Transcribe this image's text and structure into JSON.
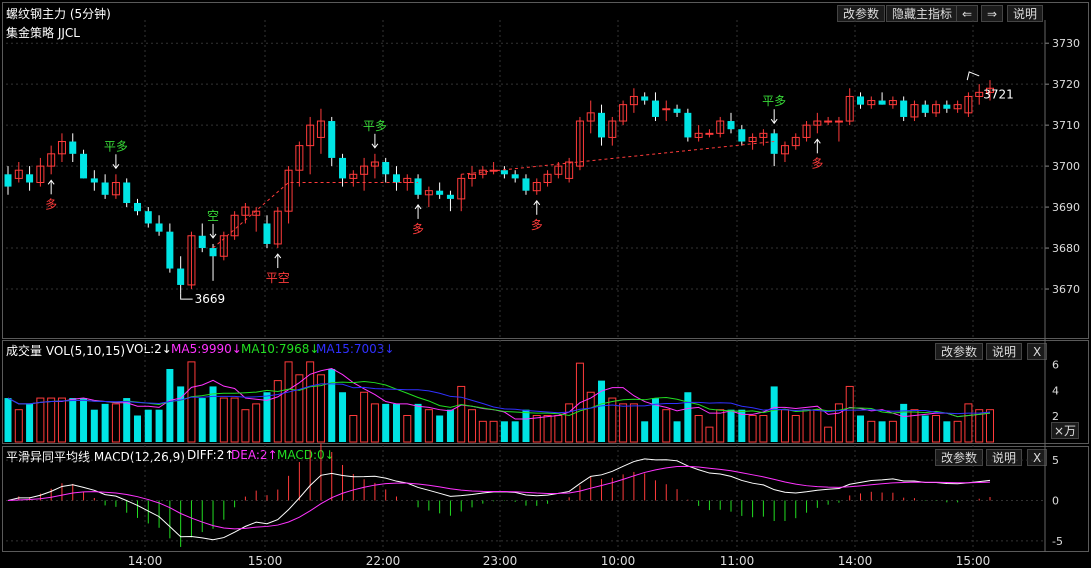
{
  "header": {
    "title": "螺纹钢主力 (5分钟)",
    "buttons": {
      "params": "改参数",
      "hide_main": "隐藏主指标",
      "prev": "⇐",
      "next": "⇒",
      "help": "说明"
    }
  },
  "main_chart": {
    "strategy_name": "集金策略 JJCL",
    "y_ticks": [
      "3730",
      "3720",
      "3710",
      "3700",
      "3690",
      "3680",
      "3670"
    ],
    "annotations": {
      "low": "3669",
      "last": "3721"
    },
    "signals": [
      {
        "text": "多",
        "color": "#ff3b3b"
      },
      {
        "text": "平多",
        "color": "#38d938"
      },
      {
        "text": "空",
        "color": "#38d938"
      },
      {
        "text": "平空",
        "color": "#ff3b3b"
      },
      {
        "text": "多",
        "color": "#ff3b3b"
      },
      {
        "text": "平多",
        "color": "#38d938"
      },
      {
        "text": "多",
        "color": "#ff3b3b"
      },
      {
        "text": "平多",
        "color": "#38d938"
      },
      {
        "text": "多",
        "color": "#ff3b3b"
      }
    ]
  },
  "volume_panel": {
    "label": "成交量 VOL(5,10,15)",
    "vol": "VOL:2↓",
    "ma5": "MA5:9990↓",
    "ma10": "MA10:7968↓",
    "ma15": "MA15:7003↓",
    "y_ticks": [
      "6",
      "4",
      "2"
    ],
    "unit_button": "×万",
    "buttons": {
      "params": "改参数",
      "help": "说明",
      "close": "X"
    }
  },
  "macd_panel": {
    "label": "平滑异同平均线 MACD(12,26,9)",
    "diff": "DIFF:2↑",
    "dea": "DEA:2↑",
    "macd": "MACD:0↓",
    "y_ticks": [
      "5",
      "0",
      "-5"
    ],
    "buttons": {
      "params": "改参数",
      "help": "说明",
      "close": "X"
    }
  },
  "time_axis": [
    "14:00",
    "15:00",
    "22:00",
    "23:00",
    "10:00",
    "11:00",
    "14:00",
    "15:00"
  ],
  "colors": {
    "up": "#ff3b3b",
    "down": "#00e5e5",
    "ma5": "#ff33ff",
    "ma10": "#22dd22",
    "ma15": "#3030ff",
    "diff": "#ffffff",
    "dea": "#ff33ff",
    "signal_green": "#38d938",
    "signal_red": "#ff3b3b"
  },
  "chart_data": {
    "type": "candlestick",
    "y_range": [
      3660,
      3732
    ],
    "candles": [
      [
        3698,
        3700,
        3693,
        3695
      ],
      [
        3697,
        3701,
        3696,
        3699
      ],
      [
        3698,
        3700,
        3694,
        3696
      ],
      [
        3696,
        3702,
        3695,
        3700
      ],
      [
        3700,
        3705,
        3698,
        3703
      ],
      [
        3703,
        3708,
        3701,
        3706
      ],
      [
        3706,
        3708,
        3701,
        3703
      ],
      [
        3703,
        3704,
        3697,
        3697
      ],
      [
        3697,
        3699,
        3694,
        3696
      ],
      [
        3696,
        3698,
        3692,
        3693
      ],
      [
        3693,
        3698,
        3692,
        3696
      ],
      [
        3696,
        3697,
        3690,
        3691
      ],
      [
        3691,
        3692,
        3688,
        3689
      ],
      [
        3689,
        3690,
        3685,
        3686
      ],
      [
        3686,
        3688,
        3683,
        3684
      ],
      [
        3684,
        3686,
        3674,
        3675
      ],
      [
        3675,
        3678,
        3669,
        3671
      ],
      [
        3671,
        3684,
        3670,
        3683
      ],
      [
        3683,
        3686,
        3679,
        3680
      ],
      [
        3680,
        3681,
        3672,
        3678
      ],
      [
        3678,
        3684,
        3677,
        3683
      ],
      [
        3683,
        3689,
        3682,
        3688
      ],
      [
        3688,
        3691,
        3686,
        3690
      ],
      [
        3688,
        3690,
        3684,
        3689
      ],
      [
        3686,
        3688,
        3680,
        3681
      ],
      [
        3681,
        3690,
        3680,
        3689
      ],
      [
        3689,
        3700,
        3686,
        3699
      ],
      [
        3699,
        3706,
        3695,
        3705
      ],
      [
        3705,
        3712,
        3698,
        3710
      ],
      [
        3707,
        3714,
        3703,
        3711
      ],
      [
        3711,
        3712,
        3700,
        3702
      ],
      [
        3702,
        3703,
        3695,
        3697
      ],
      [
        3697,
        3699,
        3695,
        3698
      ],
      [
        3698,
        3702,
        3694,
        3700
      ],
      [
        3700,
        3703,
        3697,
        3701
      ],
      [
        3701,
        3702,
        3696,
        3698
      ],
      [
        3698,
        3700,
        3694,
        3696
      ],
      [
        3696,
        3698,
        3694,
        3697
      ],
      [
        3697,
        3698,
        3692,
        3693
      ],
      [
        3693,
        3695,
        3690,
        3694
      ],
      [
        3694,
        3696,
        3692,
        3693
      ],
      [
        3693,
        3694,
        3689,
        3692
      ],
      [
        3692,
        3698,
        3689,
        3697
      ],
      [
        3697,
        3700,
        3695,
        3698
      ],
      [
        3698,
        3700,
        3697,
        3699
      ],
      [
        3699,
        3701,
        3698,
        3699
      ],
      [
        3699,
        3700,
        3697,
        3698
      ],
      [
        3698,
        3699,
        3696,
        3697
      ],
      [
        3697,
        3698,
        3693,
        3694
      ],
      [
        3694,
        3697,
        3693,
        3696
      ],
      [
        3696,
        3699,
        3695,
        3698
      ],
      [
        3698,
        3701,
        3697,
        3700
      ],
      [
        3697,
        3702,
        3696,
        3701
      ],
      [
        3700,
        3712,
        3699,
        3711
      ],
      [
        3711,
        3716,
        3708,
        3713
      ],
      [
        3713,
        3715,
        3705,
        3707
      ],
      [
        3707,
        3712,
        3705,
        3711
      ],
      [
        3711,
        3716,
        3710,
        3715
      ],
      [
        3715,
        3719,
        3713,
        3717
      ],
      [
        3717,
        3718,
        3715,
        3716
      ],
      [
        3716,
        3718,
        3711,
        3712
      ],
      [
        3714,
        3716,
        3711,
        3714
      ],
      [
        3714,
        3715,
        3712,
        3713
      ],
      [
        3713,
        3714,
        3706,
        3707
      ],
      [
        3707,
        3710,
        3706,
        3708
      ],
      [
        3708,
        3709,
        3707,
        3708
      ],
      [
        3708,
        3712,
        3707,
        3711
      ],
      [
        3711,
        3713,
        3708,
        3709
      ],
      [
        3709,
        3710,
        3705,
        3706
      ],
      [
        3706,
        3708,
        3704,
        3707
      ],
      [
        3707,
        3709,
        3705,
        3708
      ],
      [
        3708,
        3709,
        3700,
        3703
      ],
      [
        3703,
        3706,
        3701,
        3705
      ],
      [
        3705,
        3708,
        3704,
        3707
      ],
      [
        3707,
        3711,
        3706,
        3710
      ],
      [
        3710,
        3713,
        3708,
        3711
      ],
      [
        3711,
        3712,
        3710,
        3711
      ],
      [
        3711,
        3712,
        3706,
        3711
      ],
      [
        3711,
        3719,
        3710,
        3717
      ],
      [
        3717,
        3718,
        3714,
        3715
      ],
      [
        3715,
        3717,
        3714,
        3716
      ],
      [
        3716,
        3718,
        3715,
        3715
      ],
      [
        3715,
        3717,
        3714,
        3716
      ],
      [
        3716,
        3717,
        3711,
        3712
      ],
      [
        3712,
        3716,
        3711,
        3715
      ],
      [
        3715,
        3716,
        3712,
        3713
      ],
      [
        3713,
        3716,
        3712,
        3715
      ],
      [
        3715,
        3716,
        3713,
        3714
      ],
      [
        3714,
        3716,
        3713,
        3715
      ],
      [
        3713,
        3718,
        3712,
        3717
      ],
      [
        3717,
        3720,
        3715,
        3718
      ],
      [
        3718,
        3721,
        3716,
        3719
      ]
    ],
    "volume_max": 6.5,
    "macd_range": [
      -6,
      6
    ]
  }
}
